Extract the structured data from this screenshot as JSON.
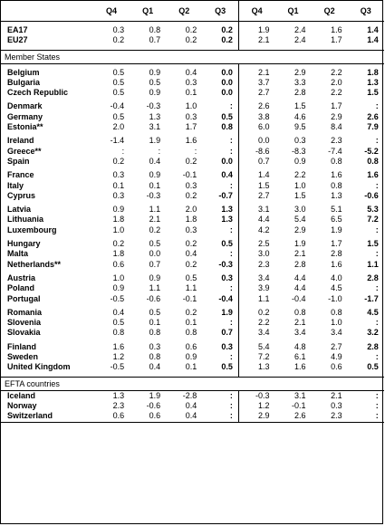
{
  "headers": [
    "",
    "Q4",
    "Q1",
    "Q2",
    "Q3",
    "Q4",
    "Q1",
    "Q2",
    "Q3"
  ],
  "aggregates": [
    {
      "name": "EA17",
      "v": [
        "0.3",
        "0.8",
        "0.2",
        "0.2",
        "1.9",
        "2.4",
        "1.6",
        "1.4"
      ]
    },
    {
      "name": "EU27",
      "v": [
        "0.2",
        "0.7",
        "0.2",
        "0.2",
        "2.1",
        "2.4",
        "1.7",
        "1.4"
      ]
    }
  ],
  "section_member": "Member States",
  "member_groups": [
    [
      {
        "name": "Belgium",
        "v": [
          "0.5",
          "0.9",
          "0.4",
          "0.0",
          "2.1",
          "2.9",
          "2.2",
          "1.8"
        ]
      },
      {
        "name": "Bulgaria",
        "v": [
          "0.5",
          "0.5",
          "0.3",
          "0.0",
          "3.7",
          "3.3",
          "2.0",
          "1.3"
        ]
      },
      {
        "name": "Czech Republic",
        "v": [
          "0.5",
          "0.9",
          "0.1",
          "0.0",
          "2.7",
          "2.8",
          "2.2",
          "1.5"
        ]
      }
    ],
    [
      {
        "name": "Denmark",
        "v": [
          "-0.4",
          "-0.3",
          "1.0",
          ":",
          "2.6",
          "1.5",
          "1.7",
          ":"
        ]
      },
      {
        "name": "Germany",
        "v": [
          "0.5",
          "1.3",
          "0.3",
          "0.5",
          "3.8",
          "4.6",
          "2.9",
          "2.6"
        ]
      },
      {
        "name": "Estonia**",
        "v": [
          "2.0",
          "3.1",
          "1.7",
          "0.8",
          "6.0",
          "9.5",
          "8.4",
          "7.9"
        ]
      }
    ],
    [
      {
        "name": "Ireland",
        "v": [
          "-1.4",
          "1.9",
          "1.6",
          ":",
          "0.0",
          "0.3",
          "2.3",
          ":"
        ]
      },
      {
        "name": "Greece**",
        "v": [
          ":",
          ":",
          ":",
          ":",
          "-8.6",
          "-8.3",
          "-7.4",
          "-5.2"
        ]
      },
      {
        "name": "Spain",
        "v": [
          "0.2",
          "0.4",
          "0.2",
          "0.0",
          "0.7",
          "0.9",
          "0.8",
          "0.8"
        ]
      }
    ],
    [
      {
        "name": "France",
        "v": [
          "0.3",
          "0.9",
          "-0.1",
          "0.4",
          "1.4",
          "2.2",
          "1.6",
          "1.6"
        ]
      },
      {
        "name": "Italy",
        "v": [
          "0.1",
          "0.1",
          "0.3",
          ":",
          "1.5",
          "1.0",
          "0.8",
          ":"
        ]
      },
      {
        "name": "Cyprus",
        "v": [
          "0.3",
          "-0.3",
          "0.2",
          "-0.7",
          "2.7",
          "1.5",
          "1.3",
          "-0.6"
        ]
      }
    ],
    [
      {
        "name": "Latvia",
        "v": [
          "0.9",
          "1.1",
          "2.0",
          "1.3",
          "3.1",
          "3.0",
          "5.1",
          "5.3"
        ]
      },
      {
        "name": "Lithuania",
        "v": [
          "1.8",
          "2.1",
          "1.8",
          "1.3",
          "4.4",
          "5.4",
          "6.5",
          "7.2"
        ]
      },
      {
        "name": "Luxembourg",
        "v": [
          "1.0",
          "0.2",
          "0.3",
          ":",
          "4.2",
          "2.9",
          "1.9",
          ":"
        ]
      }
    ],
    [
      {
        "name": "Hungary",
        "v": [
          "0.2",
          "0.5",
          "0.2",
          "0.5",
          "2.5",
          "1.9",
          "1.7",
          "1.5"
        ]
      },
      {
        "name": "Malta",
        "v": [
          "1.8",
          "0.0",
          "0.4",
          ":",
          "3.0",
          "2.1",
          "2.8",
          ":"
        ]
      },
      {
        "name": "Netherlands**",
        "v": [
          "0.6",
          "0.7",
          "0.2",
          "-0.3",
          "2.3",
          "2.8",
          "1.6",
          "1.1"
        ]
      }
    ],
    [
      {
        "name": "Austria",
        "v": [
          "1.0",
          "0.9",
          "0.5",
          "0.3",
          "3.4",
          "4.4",
          "4.0",
          "2.8"
        ]
      },
      {
        "name": "Poland",
        "v": [
          "0.9",
          "1.1",
          "1.1",
          ":",
          "3.9",
          "4.4",
          "4.5",
          ":"
        ]
      },
      {
        "name": "Portugal",
        "v": [
          "-0.5",
          "-0.6",
          "-0.1",
          "-0.4",
          "1.1",
          "-0.4",
          "-1.0",
          "-1.7"
        ]
      }
    ],
    [
      {
        "name": "Romania",
        "v": [
          "0.4",
          "0.5",
          "0.2",
          "1.9",
          "0.2",
          "0.8",
          "0.8",
          "4.5"
        ]
      },
      {
        "name": "Slovenia",
        "v": [
          "0.5",
          "0.1",
          "0.1",
          ":",
          "2.2",
          "2.1",
          "1.0",
          ":"
        ]
      },
      {
        "name": "Slovakia",
        "v": [
          "0.8",
          "0.8",
          "0.8",
          "0.7",
          "3.4",
          "3.4",
          "3.4",
          "3.2"
        ]
      }
    ],
    [
      {
        "name": "Finland",
        "v": [
          "1.6",
          "0.3",
          "0.6",
          "0.3",
          "5.4",
          "4.8",
          "2.7",
          "2.8"
        ]
      },
      {
        "name": "Sweden",
        "v": [
          "1.2",
          "0.8",
          "0.9",
          ":",
          "7.2",
          "6.1",
          "4.9",
          ":"
        ]
      },
      {
        "name": "United Kingdom",
        "v": [
          "-0.5",
          "0.4",
          "0.1",
          "0.5",
          "1.3",
          "1.6",
          "0.6",
          "0.5"
        ]
      }
    ]
  ],
  "section_efta": "EFTA countries",
  "efta": [
    {
      "name": "Iceland",
      "v": [
        "1.3",
        "1.9",
        "-2.8",
        ":",
        "-0.3",
        "3.1",
        "2.1",
        ":"
      ]
    },
    {
      "name": "Norway",
      "v": [
        "2.3",
        "-0.6",
        "0.4",
        ":",
        "1.2",
        "-0.1",
        "0.3",
        ":"
      ]
    },
    {
      "name": "Switzerland",
      "v": [
        "0.6",
        "0.6",
        "0.4",
        ":",
        "2.9",
        "2.6",
        "2.3",
        ":"
      ]
    }
  ]
}
